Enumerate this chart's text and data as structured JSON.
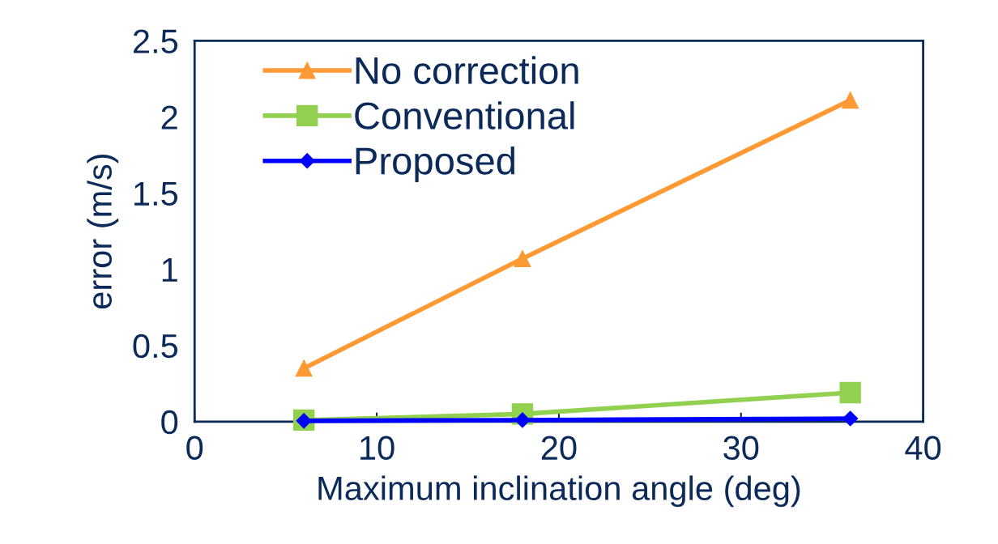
{
  "chart_data": {
    "type": "line",
    "xlabel": "Maximum inclination angle (deg)",
    "ylabel": "error (m/s)",
    "x": [
      6,
      18,
      36
    ],
    "series": [
      {
        "name": "No correction",
        "color": "#ff9933",
        "marker": "triangle",
        "values": [
          0.35,
          1.07,
          2.11
        ]
      },
      {
        "name": "Conventional",
        "color": "#92d050",
        "marker": "square",
        "values": [
          0.01,
          0.05,
          0.19
        ]
      },
      {
        "name": "Proposed",
        "color": "#0000ff",
        "marker": "diamond",
        "values": [
          0.005,
          0.01,
          0.02
        ]
      }
    ],
    "xlim": [
      0,
      40
    ],
    "xticks": [
      0,
      10,
      20,
      30,
      40
    ],
    "ylim": [
      0,
      2.5
    ],
    "yticks": [
      0,
      0.5,
      1,
      1.5,
      2,
      2.5
    ],
    "grid": false,
    "legend": "top left",
    "line_style": "solid"
  }
}
